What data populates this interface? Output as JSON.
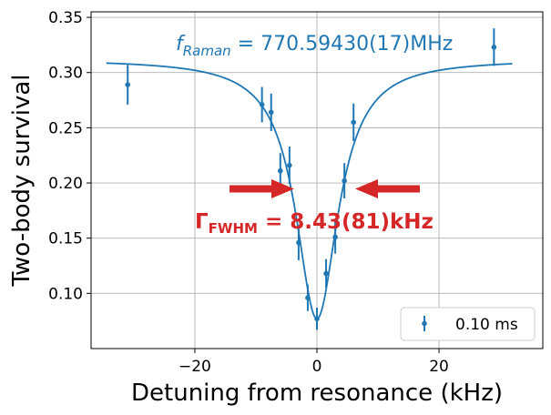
{
  "chart_data": {
    "type": "scatter",
    "title": "",
    "xlabel": "Detuning from resonance (kHz)",
    "ylabel": "Two-body survival",
    "xlim": [
      -37,
      37
    ],
    "ylim": [
      0.05,
      0.355
    ],
    "xticks": [
      -20,
      0,
      20
    ],
    "xtick_labels": [
      "−20",
      "0",
      "20"
    ],
    "yticks": [
      0.1,
      0.15,
      0.2,
      0.25,
      0.3,
      0.35
    ],
    "ytick_labels": [
      "0.10",
      "0.15",
      "0.20",
      "0.25",
      "0.30",
      "0.35"
    ],
    "grid": true,
    "legend_position": "lower-right",
    "series": [
      {
        "name": "0.10 ms",
        "color": "#1f77b4",
        "points": [
          {
            "x": -31.0,
            "y": 0.289,
            "err": 0.018
          },
          {
            "x": -9.0,
            "y": 0.271,
            "err": 0.016
          },
          {
            "x": -7.5,
            "y": 0.264,
            "err": 0.017
          },
          {
            "x": -6.0,
            "y": 0.211,
            "err": 0.016
          },
          {
            "x": -4.5,
            "y": 0.216,
            "err": 0.017
          },
          {
            "x": -3.0,
            "y": 0.146,
            "err": 0.016
          },
          {
            "x": -1.5,
            "y": 0.096,
            "err": 0.012
          },
          {
            "x": 0.0,
            "y": 0.077,
            "err": 0.01
          },
          {
            "x": 1.5,
            "y": 0.118,
            "err": 0.013
          },
          {
            "x": 3.0,
            "y": 0.151,
            "err": 0.015
          },
          {
            "x": 4.5,
            "y": 0.202,
            "err": 0.016
          },
          {
            "x": 6.0,
            "y": 0.255,
            "err": 0.017
          },
          {
            "x": 29.0,
            "y": 0.323,
            "err": 0.017
          }
        ]
      }
    ],
    "fit": {
      "color": "#1f77b4",
      "center": 0.0,
      "fwhm": 8.43,
      "baseline": 0.312,
      "min": 0.077,
      "x_range": [
        -34.5,
        32.0
      ]
    },
    "annotations": {
      "raman_prefix": "f",
      "raman_sub": "Raman",
      "raman_value": " = 770.59430(17)MHz",
      "fwhm_prefix": "Γ",
      "fwhm_sub": "FWHM",
      "fwhm_value": " = 8.43(81)kHz",
      "raman_color": "#1f77b4",
      "fwhm_color": "#d62728",
      "arrow_color": "#d62728"
    }
  }
}
